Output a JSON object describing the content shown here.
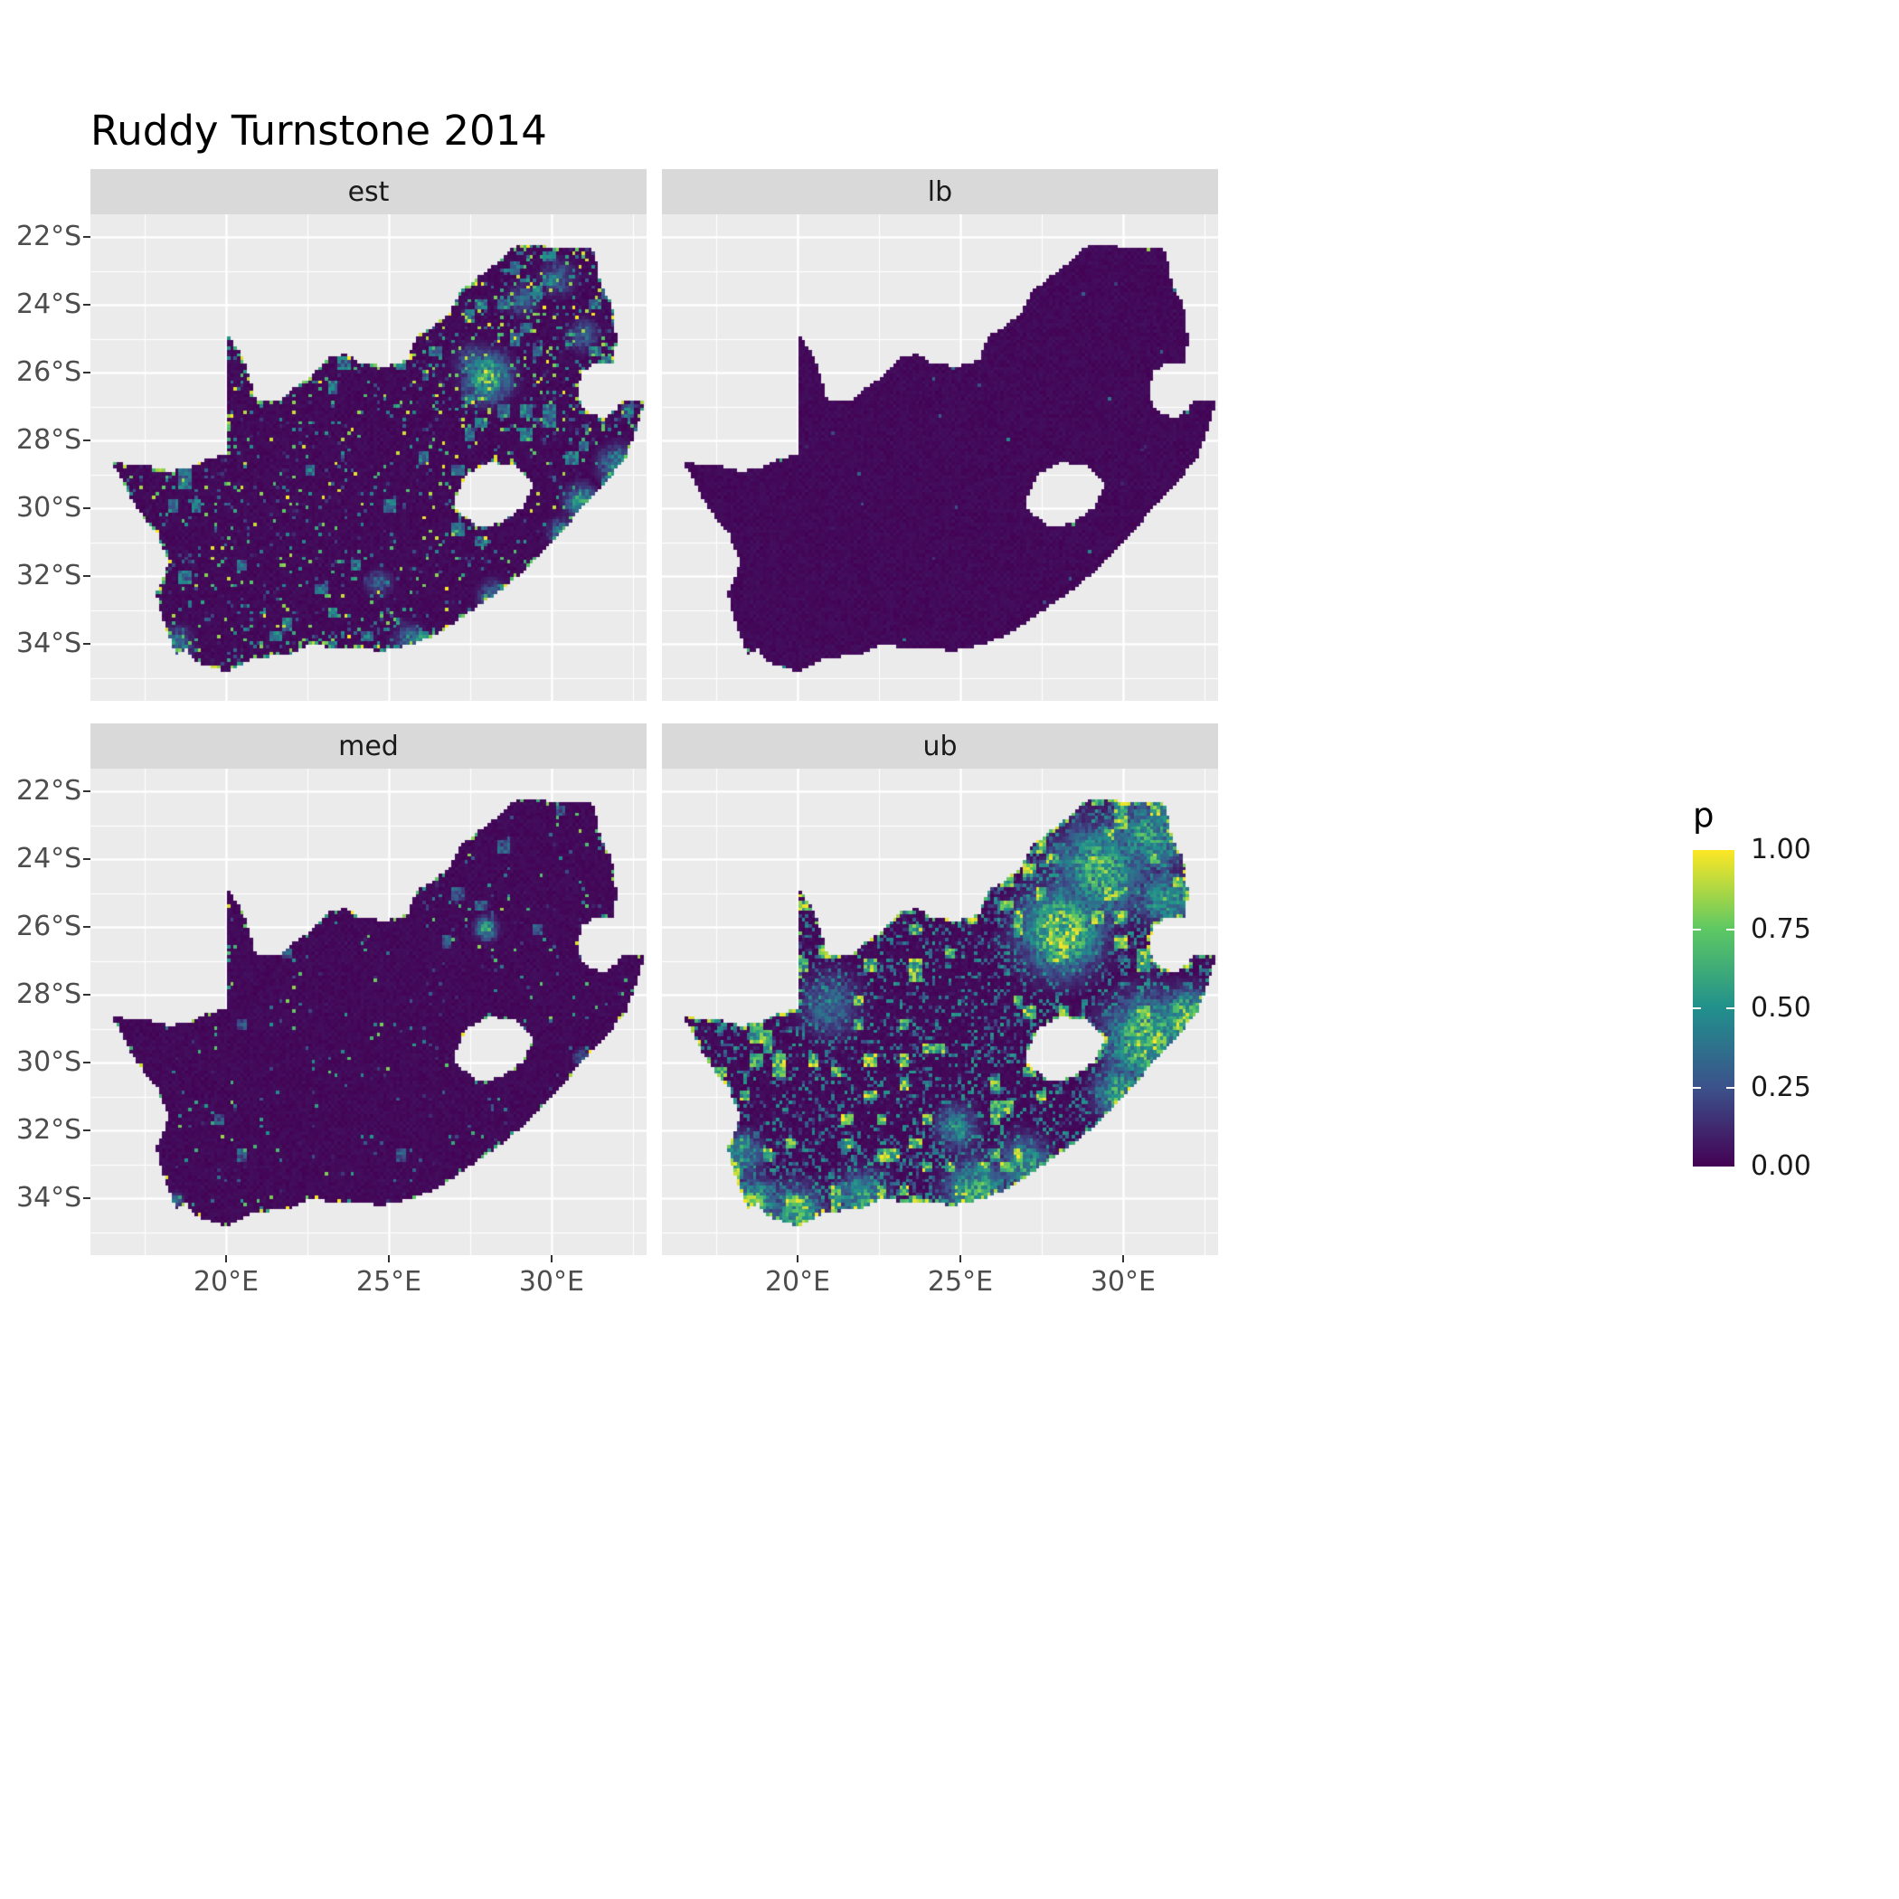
{
  "title": "Ruddy Turnstone 2014",
  "chart_data": {
    "type": "heatmap",
    "subtype": "faceted raster probability map of South Africa",
    "facets": [
      {
        "id": "est",
        "label": "est",
        "pattern_notes": "mostly near zero; bright hotspot cluster around 28E 26S (Gauteng), scattered speckles in north-east and along southern and eastern coasts"
      },
      {
        "id": "lb",
        "label": "lb",
        "pattern_notes": "uniformly near zero across the whole country with only a few coastal specks"
      },
      {
        "id": "med",
        "label": "med",
        "pattern_notes": "mostly near zero; small hotspot near 28E 26S and a few bright coastal cells"
      },
      {
        "id": "ub",
        "label": "ub",
        "pattern_notes": "large high-probability patches over Gauteng and the north-east, along the east coast near 30-32E 28-31S, and along the southern and south-western coasts"
      }
    ],
    "x_axis": {
      "ticks": [
        "20°E",
        "25°E",
        "30°E"
      ],
      "tick_lons": [
        20,
        25,
        30
      ],
      "range": [
        15.83,
        32.92
      ]
    },
    "y_axis": {
      "ticks": [
        "22°S",
        "24°S",
        "26°S",
        "28°S",
        "30°S",
        "32°S",
        "34°S"
      ],
      "tick_lats": [
        -22,
        -24,
        -26,
        -28,
        -30,
        -32,
        -34
      ],
      "range": [
        -35.68,
        -21.33
      ]
    },
    "legend": {
      "title": "p",
      "labels": [
        "1.00",
        "0.75",
        "0.50",
        "0.25",
        "0.00"
      ],
      "values": [
        1.0,
        0.75,
        0.5,
        0.25,
        0.0
      ]
    },
    "colormap": {
      "name": "viridis",
      "stops": [
        {
          "t": 0.0,
          "color": "#440154"
        },
        {
          "t": 0.25,
          "color": "#3B528B"
        },
        {
          "t": 0.5,
          "color": "#21908C"
        },
        {
          "t": 0.75,
          "color": "#5DC863"
        },
        {
          "t": 1.0,
          "color": "#FDE725"
        }
      ]
    },
    "panel_bg": "#EBEBEB",
    "strip_bg": "#D9D9D9",
    "grid_color": "#FFFFFF",
    "raster": {
      "cell_deg": 0.1,
      "seed": 7
    },
    "map": {
      "outer": [
        [
          16.45,
          -28.58
        ],
        [
          17.1,
          -28.75
        ],
        [
          17.65,
          -28.75
        ],
        [
          18.2,
          -28.9
        ],
        [
          18.8,
          -28.85
        ],
        [
          19.3,
          -28.6
        ],
        [
          19.99,
          -28.42
        ],
        [
          19.99,
          -24.77
        ],
        [
          20.35,
          -25.3
        ],
        [
          20.65,
          -25.9
        ],
        [
          20.85,
          -26.6
        ],
        [
          20.9,
          -26.85
        ],
        [
          21.7,
          -26.85
        ],
        [
          22.15,
          -26.4
        ],
        [
          22.65,
          -26.1
        ],
        [
          23.05,
          -25.6
        ],
        [
          23.65,
          -25.45
        ],
        [
          24.2,
          -25.75
        ],
        [
          24.9,
          -25.8
        ],
        [
          25.55,
          -25.65
        ],
        [
          25.9,
          -24.9
        ],
        [
          26.35,
          -24.65
        ],
        [
          26.85,
          -24.25
        ],
        [
          27.15,
          -23.65
        ],
        [
          27.7,
          -23.22
        ],
        [
          28.2,
          -22.85
        ],
        [
          28.85,
          -22.3
        ],
        [
          29.35,
          -22.2
        ],
        [
          30.0,
          -22.3
        ],
        [
          30.85,
          -22.3
        ],
        [
          31.3,
          -22.4
        ],
        [
          31.55,
          -23.5
        ],
        [
          31.8,
          -23.9
        ],
        [
          31.95,
          -24.4
        ],
        [
          32.0,
          -25.1
        ],
        [
          31.9,
          -25.78
        ],
        [
          31.35,
          -25.73
        ],
        [
          30.95,
          -26.0
        ],
        [
          30.8,
          -26.45
        ],
        [
          30.85,
          -26.8
        ],
        [
          31.1,
          -27.2
        ],
        [
          31.6,
          -27.33
        ],
        [
          31.97,
          -27.1
        ],
        [
          32.13,
          -26.86
        ],
        [
          32.89,
          -26.86
        ],
        [
          32.3,
          -28.5
        ],
        [
          31.7,
          -29.2
        ],
        [
          31.0,
          -29.9
        ],
        [
          30.2,
          -30.85
        ],
        [
          29.45,
          -31.6
        ],
        [
          28.6,
          -32.3
        ],
        [
          27.6,
          -33.0
        ],
        [
          26.4,
          -33.76
        ],
        [
          25.65,
          -34.03
        ],
        [
          24.8,
          -34.2
        ],
        [
          23.5,
          -34.1
        ],
        [
          22.5,
          -34.06
        ],
        [
          21.9,
          -34.35
        ],
        [
          20.9,
          -34.4
        ],
        [
          20.0,
          -34.83
        ],
        [
          19.3,
          -34.62
        ],
        [
          18.85,
          -34.35
        ],
        [
          18.8,
          -34.1
        ],
        [
          18.45,
          -34.35
        ],
        [
          18.3,
          -33.9
        ],
        [
          18.0,
          -33.1
        ],
        [
          17.85,
          -32.55
        ],
        [
          18.25,
          -31.6
        ],
        [
          17.9,
          -30.8
        ],
        [
          17.25,
          -30.0
        ],
        [
          16.85,
          -29.25
        ]
      ],
      "holes": [
        [
          [
            27.05,
            -29.65
          ],
          [
            27.4,
            -29.0
          ],
          [
            28.1,
            -28.65
          ],
          [
            28.95,
            -28.75
          ],
          [
            29.45,
            -29.35
          ],
          [
            29.1,
            -30.0
          ],
          [
            28.4,
            -30.45
          ],
          [
            27.75,
            -30.55
          ],
          [
            27.3,
            -30.2
          ],
          [
            27.0,
            -29.9
          ]
        ]
      ]
    },
    "facet_params": {
      "est": {
        "speckleProb": 0.11,
        "speckleGamma": 2.0,
        "speckleMax": 1.0,
        "clumpProb": 0.05,
        "clumpMax": 0.55,
        "edgeProb": 0.3,
        "edgeMax": 1.0,
        "regions": [
          {
            "lonMin": 26,
            "lonMax": 33,
            "latMin": -28,
            "latMax": -22,
            "mul": 2.0
          },
          {
            "lonMin": 17,
            "lonMax": 27,
            "latMin": -35,
            "latMax": -33,
            "mul": 1.8
          }
        ],
        "hotspots": [
          {
            "lon": 28.05,
            "lat": -26.15,
            "sigma": 0.45,
            "amp": 1.0
          },
          {
            "lon": 27.6,
            "lat": -25.7,
            "sigma": 0.35,
            "amp": 0.5
          },
          {
            "lon": 29.1,
            "lat": -23.85,
            "sigma": 0.3,
            "amp": 0.45
          },
          {
            "lon": 30.2,
            "lat": -23.2,
            "sigma": 0.35,
            "amp": 0.4
          },
          {
            "lon": 31.0,
            "lat": -24.9,
            "sigma": 0.3,
            "amp": 0.45
          },
          {
            "lon": 30.9,
            "lat": -29.8,
            "sigma": 0.3,
            "amp": 0.8
          },
          {
            "lon": 32.0,
            "lat": -28.7,
            "sigma": 0.35,
            "amp": 0.7
          },
          {
            "lon": 30.3,
            "lat": -30.7,
            "sigma": 0.25,
            "amp": 0.6
          },
          {
            "lon": 18.5,
            "lat": -34.0,
            "sigma": 0.3,
            "amp": 0.6
          },
          {
            "lon": 25.6,
            "lat": -33.9,
            "sigma": 0.3,
            "amp": 0.5
          },
          {
            "lon": 24.7,
            "lat": -32.2,
            "sigma": 0.25,
            "amp": 0.45
          },
          {
            "lon": 28.2,
            "lat": -32.6,
            "sigma": 0.3,
            "amp": 0.5
          }
        ]
      },
      "lb": {
        "speckleProb": 0.004,
        "speckleGamma": 3.0,
        "speckleMax": 0.5,
        "clumpProb": 0.0,
        "clumpMax": 0.0,
        "edgeProb": 0.02,
        "edgeMax": 0.9,
        "regions": [],
        "hotspots": []
      },
      "med": {
        "speckleProb": 0.035,
        "speckleGamma": 2.6,
        "speckleMax": 0.85,
        "clumpProb": 0.008,
        "clumpMax": 0.4,
        "edgeProb": 0.12,
        "edgeMax": 1.0,
        "regions": [
          {
            "lonMin": 26,
            "lonMax": 33,
            "latMin": -28,
            "latMax": -22,
            "mul": 1.6
          }
        ],
        "hotspots": [
          {
            "lon": 28.0,
            "lat": -26.05,
            "sigma": 0.22,
            "amp": 0.8
          },
          {
            "lon": 30.9,
            "lat": -29.85,
            "sigma": 0.15,
            "amp": 0.5
          },
          {
            "lon": 18.45,
            "lat": -34.05,
            "sigma": 0.15,
            "amp": 0.5
          }
        ]
      },
      "ub": {
        "speckleProb": 0.3,
        "speckleGamma": 1.0,
        "speckleMax": 0.55,
        "clumpProb": 0.1,
        "clumpMax": 1.0,
        "edgeProb": 0.45,
        "edgeMax": 1.0,
        "regions": [
          {
            "lonMin": 26,
            "lonMax": 33,
            "latMin": -27,
            "latMax": -22,
            "mul": 1.5
          },
          {
            "lonMin": 17,
            "lonMax": 27,
            "latMin": -35,
            "latMax": -32.5,
            "mul": 1.5
          }
        ],
        "hotspots": [
          {
            "lon": 28.1,
            "lat": -26.1,
            "sigma": 0.8,
            "amp": 1.2
          },
          {
            "lon": 29.3,
            "lat": -24.3,
            "sigma": 0.9,
            "amp": 0.9
          },
          {
            "lon": 30.8,
            "lat": -23.3,
            "sigma": 0.7,
            "amp": 0.8
          },
          {
            "lon": 31.3,
            "lat": -25.2,
            "sigma": 0.5,
            "amp": 0.8
          },
          {
            "lon": 30.7,
            "lat": -29.3,
            "sigma": 0.8,
            "amp": 1.1
          },
          {
            "lon": 29.9,
            "lat": -30.9,
            "sigma": 0.5,
            "amp": 0.9
          },
          {
            "lon": 31.9,
            "lat": -28.6,
            "sigma": 0.5,
            "amp": 1.0
          },
          {
            "lon": 18.6,
            "lat": -34.2,
            "sigma": 0.5,
            "amp": 1.0
          },
          {
            "lon": 20.0,
            "lat": -34.4,
            "sigma": 0.5,
            "amp": 0.9
          },
          {
            "lon": 22.0,
            "lat": -34.0,
            "sigma": 0.5,
            "amp": 0.8
          },
          {
            "lon": 25.5,
            "lat": -33.8,
            "sigma": 0.6,
            "amp": 0.9
          },
          {
            "lon": 27.0,
            "lat": -33.0,
            "sigma": 0.5,
            "amp": 0.8
          },
          {
            "lon": 18.3,
            "lat": -32.7,
            "sigma": 0.4,
            "amp": 0.7
          },
          {
            "lon": 21.0,
            "lat": -28.3,
            "sigma": 0.6,
            "amp": 0.5
          },
          {
            "lon": 24.9,
            "lat": -31.9,
            "sigma": 0.4,
            "amp": 0.7
          }
        ]
      }
    }
  }
}
